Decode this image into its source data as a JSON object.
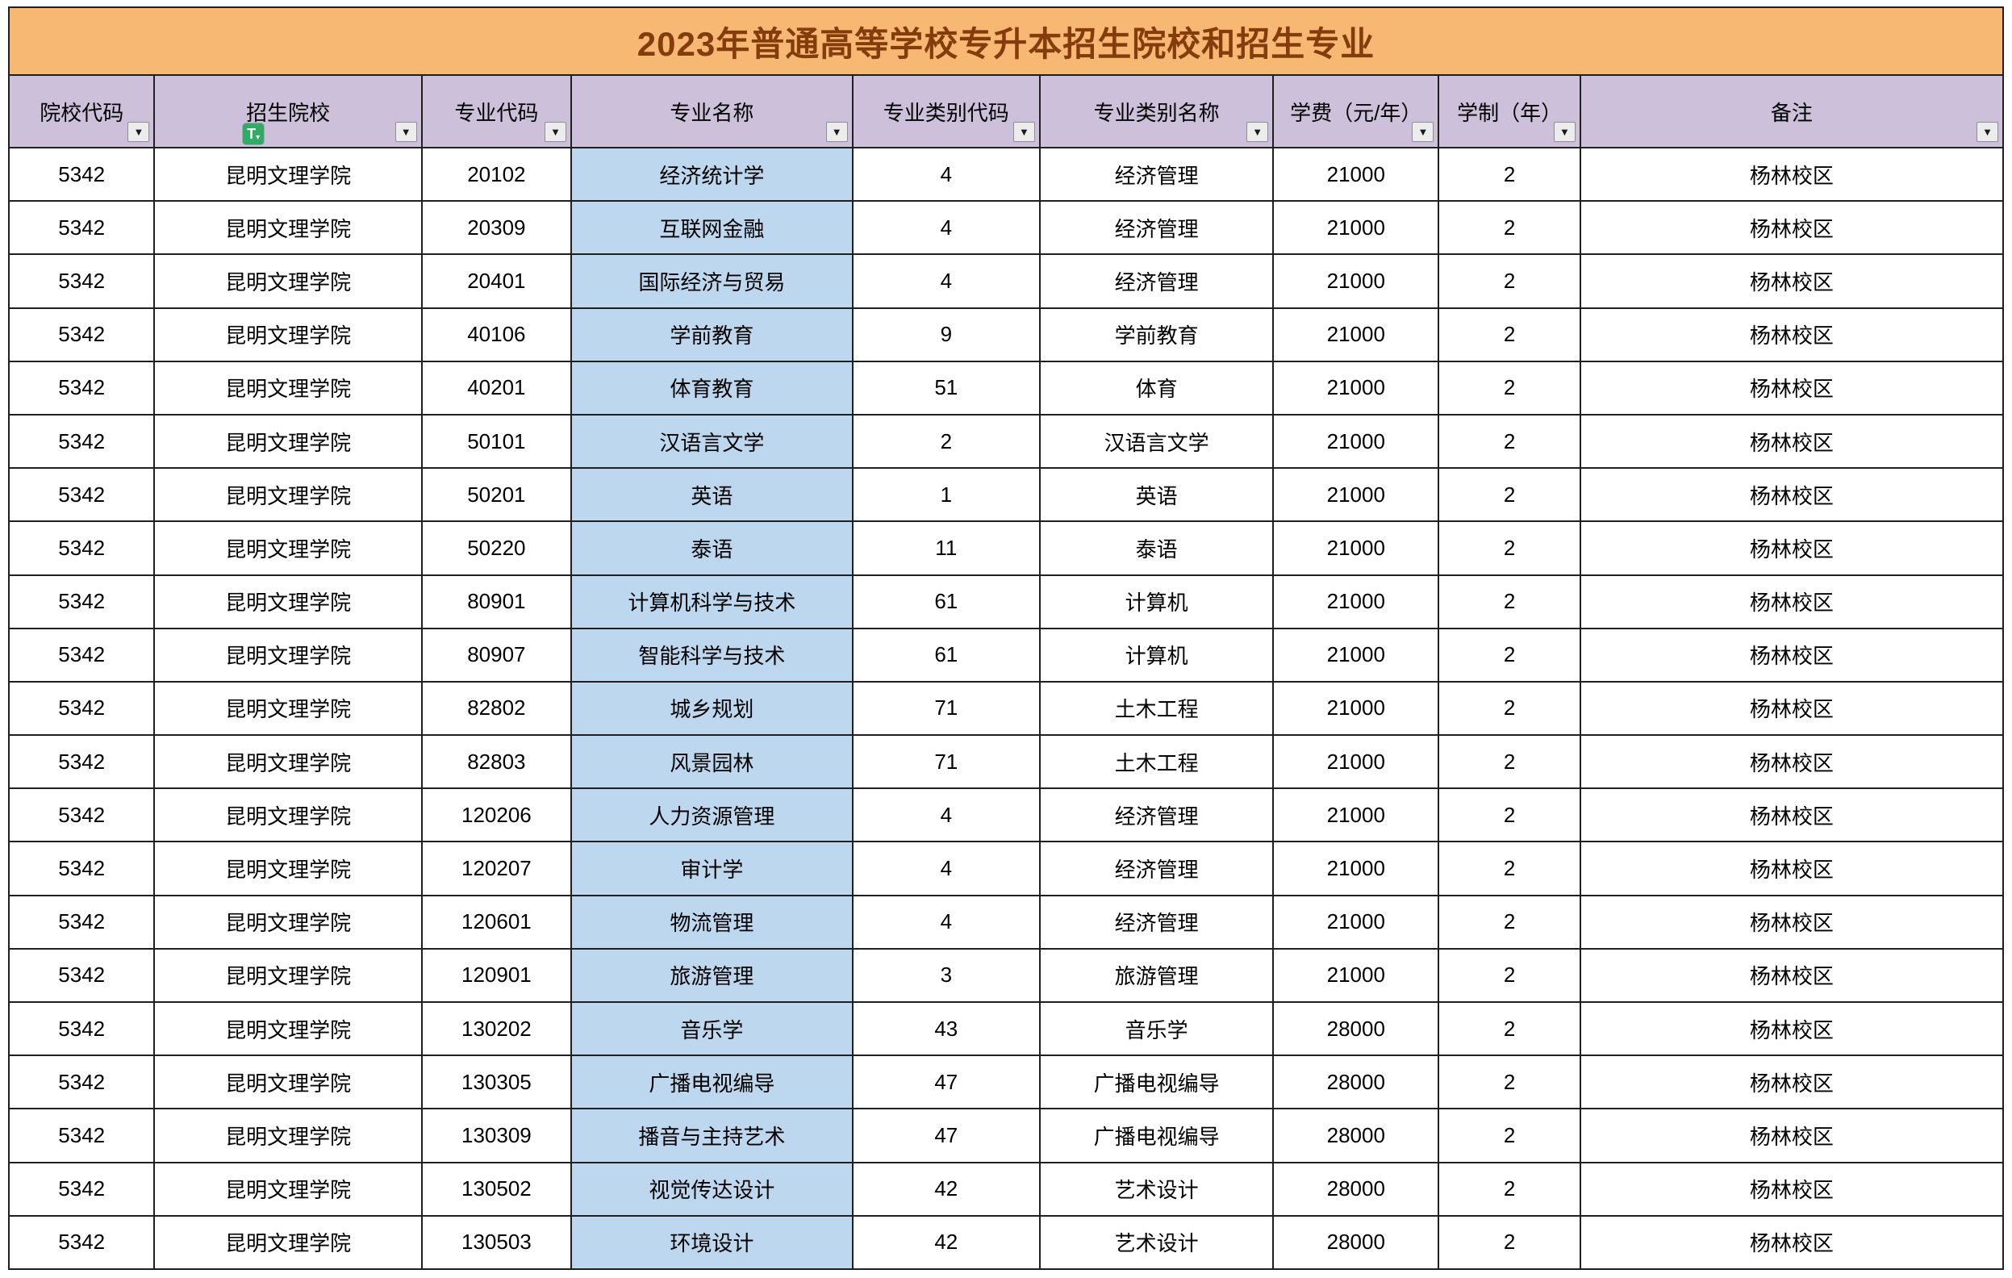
{
  "title": "2023年普通高等学校专升本招生院校和招生专业",
  "colors": {
    "title_bg": "#F7B873",
    "title_text": "#843C0C",
    "header_bg": "#CCC0DA",
    "major_name_bg": "#BDD7EE",
    "border": "#1f1f1f",
    "badge_green": "#2FAB66"
  },
  "icons": {
    "filter_glyph": "▼",
    "badge_letter": "T"
  },
  "columns": [
    {
      "key": "school_code",
      "label": "院校代码"
    },
    {
      "key": "school_name",
      "label": "招生院校"
    },
    {
      "key": "major_code",
      "label": "专业代码"
    },
    {
      "key": "major_name",
      "label": "专业名称"
    },
    {
      "key": "category_code",
      "label": "专业类别代码"
    },
    {
      "key": "category_name",
      "label": "专业类别名称"
    },
    {
      "key": "tuition",
      "label": "学费（元/年）"
    },
    {
      "key": "duration",
      "label": "学制（年）"
    },
    {
      "key": "remarks",
      "label": "备注"
    }
  ],
  "rows": [
    [
      "5342",
      "昆明文理学院",
      "20102",
      "经济统计学",
      "4",
      "经济管理",
      "21000",
      "2",
      "杨林校区"
    ],
    [
      "5342",
      "昆明文理学院",
      "20309",
      "互联网金融",
      "4",
      "经济管理",
      "21000",
      "2",
      "杨林校区"
    ],
    [
      "5342",
      "昆明文理学院",
      "20401",
      "国际经济与贸易",
      "4",
      "经济管理",
      "21000",
      "2",
      "杨林校区"
    ],
    [
      "5342",
      "昆明文理学院",
      "40106",
      "学前教育",
      "9",
      "学前教育",
      "21000",
      "2",
      "杨林校区"
    ],
    [
      "5342",
      "昆明文理学院",
      "40201",
      "体育教育",
      "51",
      "体育",
      "21000",
      "2",
      "杨林校区"
    ],
    [
      "5342",
      "昆明文理学院",
      "50101",
      "汉语言文学",
      "2",
      "汉语言文学",
      "21000",
      "2",
      "杨林校区"
    ],
    [
      "5342",
      "昆明文理学院",
      "50201",
      "英语",
      "1",
      "英语",
      "21000",
      "2",
      "杨林校区"
    ],
    [
      "5342",
      "昆明文理学院",
      "50220",
      "泰语",
      "11",
      "泰语",
      "21000",
      "2",
      "杨林校区"
    ],
    [
      "5342",
      "昆明文理学院",
      "80901",
      "计算机科学与技术",
      "61",
      "计算机",
      "21000",
      "2",
      "杨林校区"
    ],
    [
      "5342",
      "昆明文理学院",
      "80907",
      "智能科学与技术",
      "61",
      "计算机",
      "21000",
      "2",
      "杨林校区"
    ],
    [
      "5342",
      "昆明文理学院",
      "82802",
      "城乡规划",
      "71",
      "土木工程",
      "21000",
      "2",
      "杨林校区"
    ],
    [
      "5342",
      "昆明文理学院",
      "82803",
      "风景园林",
      "71",
      "土木工程",
      "21000",
      "2",
      "杨林校区"
    ],
    [
      "5342",
      "昆明文理学院",
      "120206",
      "人力资源管理",
      "4",
      "经济管理",
      "21000",
      "2",
      "杨林校区"
    ],
    [
      "5342",
      "昆明文理学院",
      "120207",
      "审计学",
      "4",
      "经济管理",
      "21000",
      "2",
      "杨林校区"
    ],
    [
      "5342",
      "昆明文理学院",
      "120601",
      "物流管理",
      "4",
      "经济管理",
      "21000",
      "2",
      "杨林校区"
    ],
    [
      "5342",
      "昆明文理学院",
      "120901",
      "旅游管理",
      "3",
      "旅游管理",
      "21000",
      "2",
      "杨林校区"
    ],
    [
      "5342",
      "昆明文理学院",
      "130202",
      "音乐学",
      "43",
      "音乐学",
      "28000",
      "2",
      "杨林校区"
    ],
    [
      "5342",
      "昆明文理学院",
      "130305",
      "广播电视编导",
      "47",
      "广播电视编导",
      "28000",
      "2",
      "杨林校区"
    ],
    [
      "5342",
      "昆明文理学院",
      "130309",
      "播音与主持艺术",
      "47",
      "广播电视编导",
      "28000",
      "2",
      "杨林校区"
    ],
    [
      "5342",
      "昆明文理学院",
      "130502",
      "视觉传达设计",
      "42",
      "艺术设计",
      "28000",
      "2",
      "杨林校区"
    ],
    [
      "5342",
      "昆明文理学院",
      "130503",
      "环境设计",
      "42",
      "艺术设计",
      "28000",
      "2",
      "杨林校区"
    ]
  ]
}
